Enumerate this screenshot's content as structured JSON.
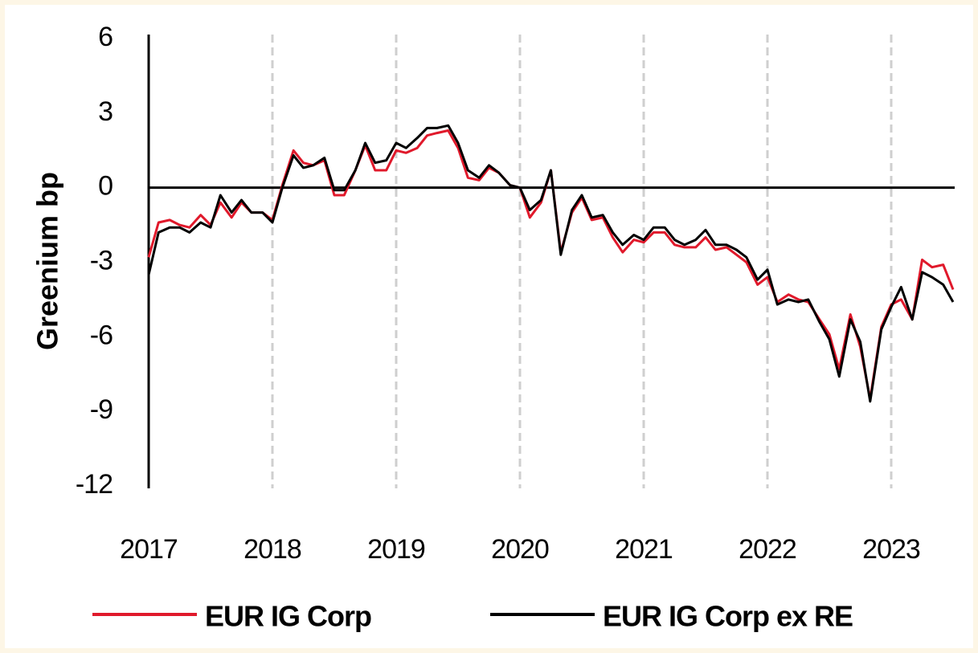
{
  "chart_data": {
    "type": "line",
    "y_label": "Greenium bp",
    "x": [
      2017,
      2017.08,
      2017.17,
      2017.25,
      2017.33,
      2017.42,
      2017.5,
      2017.58,
      2017.67,
      2017.75,
      2017.83,
      2017.92,
      2018,
      2018.08,
      2018.17,
      2018.25,
      2018.33,
      2018.42,
      2018.5,
      2018.58,
      2018.67,
      2018.75,
      2018.83,
      2018.92,
      2019,
      2019.08,
      2019.17,
      2019.25,
      2019.33,
      2019.42,
      2019.5,
      2019.58,
      2019.67,
      2019.75,
      2019.83,
      2019.92,
      2020,
      2020.08,
      2020.17,
      2020.25,
      2020.33,
      2020.42,
      2020.5,
      2020.58,
      2020.67,
      2020.75,
      2020.83,
      2020.92,
      2021,
      2021.08,
      2021.17,
      2021.25,
      2021.33,
      2021.42,
      2021.5,
      2021.58,
      2021.67,
      2021.75,
      2021.83,
      2021.92,
      2022,
      2022.08,
      2022.17,
      2022.25,
      2022.33,
      2022.42,
      2022.5,
      2022.58,
      2022.67,
      2022.75,
      2022.83,
      2022.92,
      2023,
      2023.08,
      2023.17,
      2023.25,
      2023.33,
      2023.42,
      2023.5
    ],
    "series": [
      {
        "name": "EUR IG Corp",
        "color": "#e0192b",
        "values": [
          -2.8,
          -1.4,
          -1.3,
          -1.5,
          -1.6,
          -1.1,
          -1.5,
          -0.6,
          -1.2,
          -0.6,
          -1.0,
          -1.0,
          -1.3,
          0.1,
          1.5,
          1.0,
          0.9,
          1.1,
          -0.3,
          -0.3,
          0.7,
          1.7,
          0.7,
          0.7,
          1.5,
          1.4,
          1.6,
          2.1,
          2.2,
          2.3,
          1.6,
          0.4,
          0.3,
          0.8,
          0.6,
          0.1,
          0.0,
          -1.2,
          -0.6,
          0.7,
          -2.6,
          -1.0,
          -0.4,
          -1.3,
          -1.2,
          -2.0,
          -2.6,
          -2.1,
          -2.2,
          -1.8,
          -1.8,
          -2.3,
          -2.4,
          -2.4,
          -2.0,
          -2.5,
          -2.4,
          -2.7,
          -3.0,
          -3.9,
          -3.6,
          -4.6,
          -4.3,
          -4.5,
          -4.6,
          -5.3,
          -5.9,
          -7.3,
          -5.1,
          -6.4,
          -8.5,
          -5.6,
          -4.7,
          -4.5,
          -5.3,
          -2.9,
          -3.2,
          -3.1,
          -4.1
        ]
      },
      {
        "name": "EUR IG Corp ex RE",
        "color": "#000000",
        "values": [
          -3.5,
          -1.8,
          -1.6,
          -1.6,
          -1.8,
          -1.4,
          -1.6,
          -0.3,
          -1.0,
          -0.5,
          -1.0,
          -1.0,
          -1.4,
          0.0,
          1.3,
          0.8,
          0.9,
          1.2,
          -0.1,
          -0.1,
          0.7,
          1.8,
          1.0,
          1.1,
          1.8,
          1.6,
          2.0,
          2.4,
          2.4,
          2.5,
          1.8,
          0.7,
          0.4,
          0.9,
          0.6,
          0.1,
          0.0,
          -0.9,
          -0.5,
          0.7,
          -2.7,
          -0.9,
          -0.3,
          -1.2,
          -1.1,
          -1.8,
          -2.3,
          -1.9,
          -2.1,
          -1.6,
          -1.6,
          -2.1,
          -2.3,
          -2.1,
          -1.7,
          -2.3,
          -2.3,
          -2.5,
          -2.8,
          -3.7,
          -3.3,
          -4.7,
          -4.5,
          -4.6,
          -4.5,
          -5.4,
          -6.1,
          -7.6,
          -5.3,
          -6.2,
          -8.6,
          -5.7,
          -4.8,
          -4.0,
          -5.3,
          -3.4,
          -3.6,
          -3.9,
          -4.6
        ]
      }
    ],
    "xlim": [
      2017,
      2023.5
    ],
    "xticks": [
      2017,
      2018,
      2019,
      2020,
      2021,
      2022,
      2023
    ],
    "ylim": [
      -12,
      6
    ],
    "yticks": [
      6,
      3,
      0,
      -3,
      -6,
      -9,
      -12
    ],
    "grid": true
  }
}
